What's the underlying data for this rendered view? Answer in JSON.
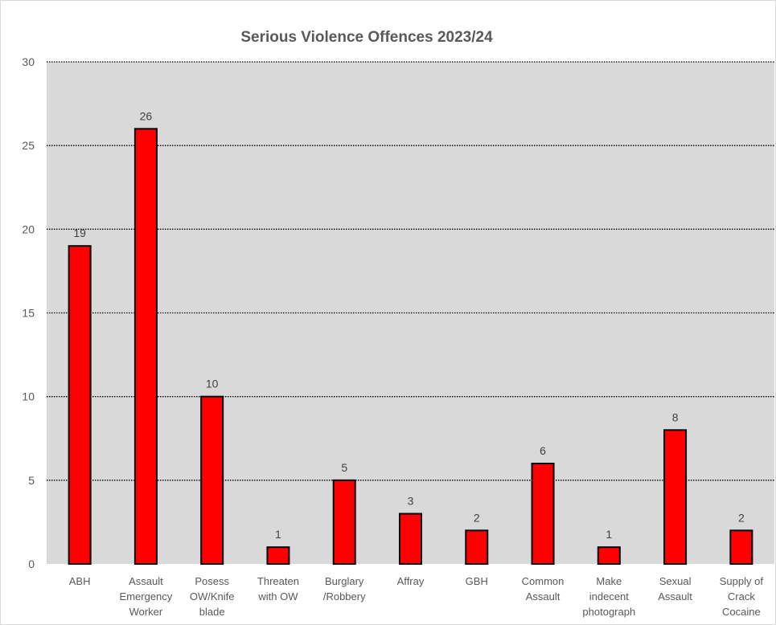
{
  "chart_data": {
    "type": "bar",
    "title": "Serious Violence Offences 2023/24",
    "xlabel": "",
    "ylabel": "",
    "ylim": [
      0,
      30
    ],
    "yticks": [
      0,
      5,
      10,
      15,
      20,
      25,
      30
    ],
    "grid": true,
    "legend": "none",
    "categories": [
      [
        "ABH"
      ],
      [
        "Assault",
        "Emergency",
        "Worker"
      ],
      [
        "Posess",
        "OW/Knife",
        "blade"
      ],
      [
        "Threaten",
        "with OW"
      ],
      [
        "Burglary",
        "/Robbery"
      ],
      [
        "Affray"
      ],
      [
        "GBH"
      ],
      [
        "Common",
        "Assault"
      ],
      [
        "Make",
        "indecent",
        "photograph"
      ],
      [
        "Sexual",
        "Assault"
      ],
      [
        "Supply of",
        "Crack",
        "Cocaine"
      ]
    ],
    "values": [
      19,
      26,
      10,
      1,
      5,
      3,
      2,
      6,
      1,
      8,
      2
    ],
    "data_labels": [
      "19",
      "26",
      "10",
      "1",
      "5",
      "3",
      "2",
      "6",
      "1",
      "8",
      "2"
    ],
    "colors": {
      "bar_fill": "#ff0000",
      "bar_stroke": "#000000",
      "plot_background": "#d9d9d9",
      "gridline": "#000000",
      "text": "#595959"
    }
  }
}
